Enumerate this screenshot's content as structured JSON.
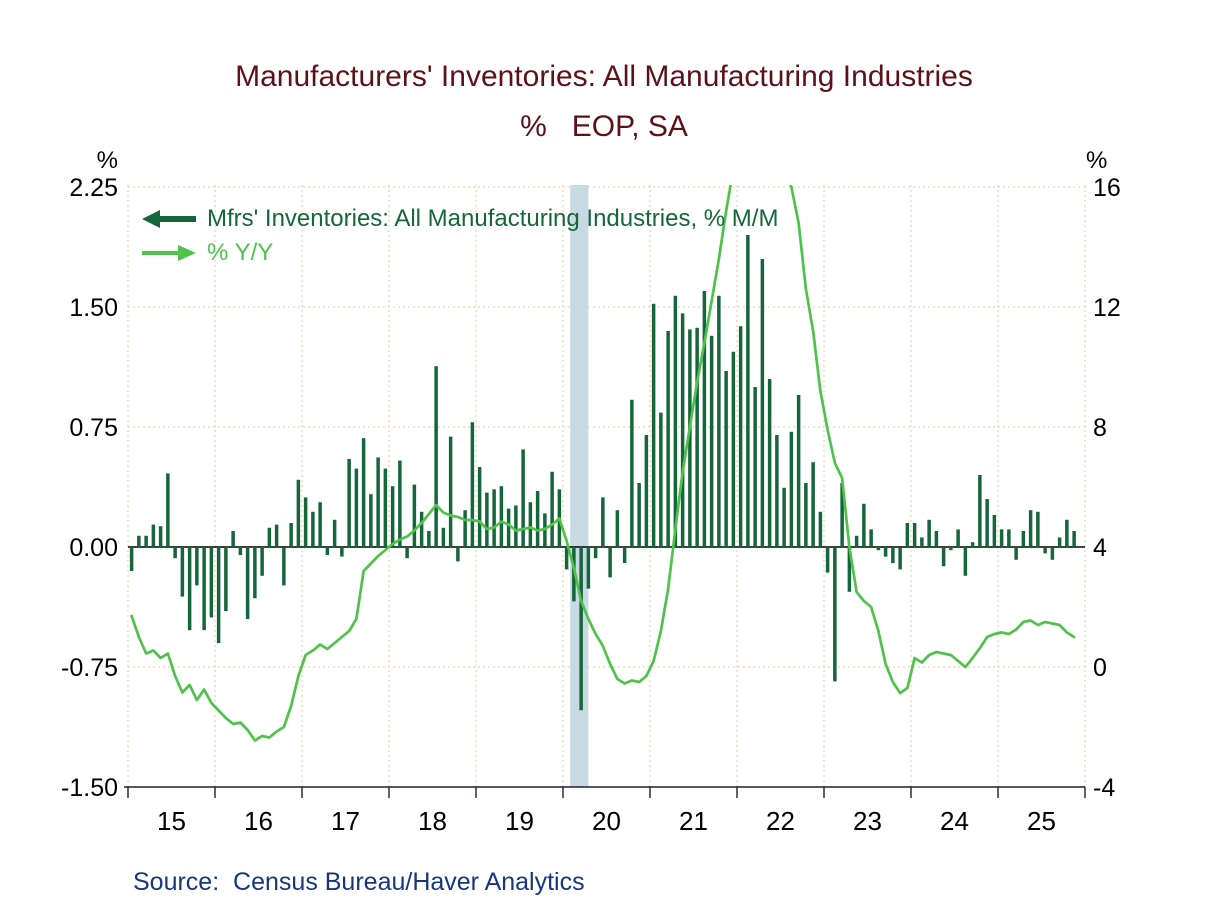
{
  "title": {
    "line1": "Manufacturers' Inventories: All Manufacturing Industries",
    "line2": "%   EOP, SA"
  },
  "source_label": "Source:  Census Bureau/Haver Analytics",
  "axes": {
    "left": {
      "unit": "%",
      "ticks": [
        "2.25",
        "1.50",
        "0.75",
        "0.00",
        "-0.75",
        "-1.50"
      ]
    },
    "right": {
      "unit": "%",
      "ticks": [
        "16",
        "12",
        "8",
        "4",
        "0",
        "-4"
      ]
    },
    "x": {
      "labels": [
        "15",
        "16",
        "17",
        "18",
        "19",
        "20",
        "21",
        "22",
        "23",
        "24",
        "25"
      ]
    }
  },
  "legend": [
    {
      "label": "Mfrs' Inventories: All Manufacturing Industries, % M/M",
      "arrow": "left"
    },
    {
      "label": "% Y/Y",
      "arrow": "right"
    }
  ],
  "colors": {
    "title": "#5D1118",
    "bars": "#15663A",
    "line": "#4EC24A",
    "source": "#16367F",
    "grid": "#F5C49E",
    "recession_band": "#C7D9E3",
    "axis": "#1C2030",
    "zero_line": "#000000",
    "tick_text": "#000000"
  },
  "chart_data": {
    "type": "bar",
    "title": "Manufacturers' Inventories: All Manufacturing Industries, % EOP, SA",
    "x_start": "2015-01",
    "x_end": "2025-11",
    "frequency": "monthly",
    "left_ylabel": "%",
    "right_ylabel": "%",
    "left_ylim": [
      -1.5,
      2.25
    ],
    "right_ylim": [
      -4,
      16
    ],
    "grid": "dotted, horizontal at left ticks and vertical at each January",
    "legend_position": "top-left inside plot",
    "recession_band": [
      "2020-02",
      "2020-04"
    ],
    "x_tick_years": [
      2015,
      2016,
      2017,
      2018,
      2019,
      2020,
      2021,
      2022,
      2023,
      2024,
      2025
    ],
    "series": [
      {
        "name": "Mfrs' Inventories: All Manufacturing Industries, % M/M",
        "type": "bar",
        "axis": "left",
        "values": [
          -0.15,
          0.07,
          0.07,
          0.14,
          0.13,
          0.46,
          -0.07,
          -0.31,
          -0.52,
          -0.24,
          -0.52,
          -0.44,
          -0.6,
          -0.4,
          0.1,
          -0.05,
          -0.45,
          -0.32,
          -0.18,
          0.12,
          0.14,
          -0.24,
          0.15,
          0.42,
          0.31,
          0.22,
          0.28,
          -0.05,
          0.17,
          -0.06,
          0.55,
          0.49,
          0.68,
          0.33,
          0.56,
          0.49,
          0.38,
          0.54,
          -0.07,
          0.39,
          0.22,
          0.1,
          1.13,
          0.12,
          0.69,
          -0.09,
          0.23,
          0.78,
          0.5,
          0.34,
          0.36,
          0.38,
          0.24,
          0.26,
          0.61,
          0.28,
          0.35,
          0.21,
          0.47,
          0.36,
          -0.14,
          -0.34,
          -1.02,
          -0.26,
          -0.07,
          0.31,
          -0.19,
          0.23,
          -0.1,
          0.92,
          0.4,
          0.7,
          1.52,
          0.84,
          1.35,
          1.57,
          1.46,
          1.36,
          1.37,
          1.6,
          1.32,
          1.57,
          1.1,
          1.22,
          1.38,
          1.95,
          1.0,
          1.8,
          1.05,
          0.7,
          0.37,
          0.72,
          0.95,
          0.4,
          0.53,
          0.22,
          -0.16,
          -0.84,
          0.4,
          -0.28,
          0.07,
          0.27,
          0.11,
          -0.02,
          -0.06,
          -0.1,
          -0.14,
          0.15,
          0.15,
          0.06,
          0.17,
          0.1,
          -0.12,
          -0.02,
          0.11,
          -0.18,
          0.03,
          0.45,
          0.3,
          0.2,
          0.11,
          0.11,
          -0.08,
          0.1,
          0.23,
          0.22,
          -0.04,
          -0.08,
          0.06,
          0.17,
          0.1
        ]
      },
      {
        "name": "% Y/Y",
        "type": "line",
        "axis": "right",
        "note_offscale": "values above 16 are clipped at plot top (Dec 2021 - Jul 2022)",
        "values": [
          1.7,
          1.0,
          0.45,
          0.55,
          0.3,
          0.45,
          -0.3,
          -0.85,
          -0.6,
          -1.1,
          -0.75,
          -1.2,
          -1.45,
          -1.7,
          -1.9,
          -1.85,
          -2.1,
          -2.45,
          -2.3,
          -2.35,
          -2.15,
          -2.0,
          -1.3,
          -0.3,
          0.4,
          0.55,
          0.75,
          0.6,
          0.8,
          1.0,
          1.2,
          1.6,
          3.2,
          3.45,
          3.7,
          3.9,
          4.1,
          4.25,
          4.35,
          4.55,
          4.8,
          5.1,
          5.4,
          5.15,
          5.05,
          5.0,
          4.9,
          4.9,
          4.85,
          4.6,
          4.65,
          4.85,
          4.75,
          4.55,
          4.6,
          4.65,
          4.55,
          4.6,
          4.75,
          4.95,
          4.2,
          3.3,
          2.2,
          1.6,
          1.1,
          0.7,
          0.1,
          -0.4,
          -0.55,
          -0.45,
          -0.5,
          -0.3,
          0.2,
          1.2,
          2.6,
          4.6,
          6.5,
          8.0,
          9.5,
          10.8,
          12.2,
          13.6,
          15.2,
          16.6,
          17.6,
          18.3,
          18.6,
          18.4,
          18.0,
          17.4,
          16.6,
          16.0,
          14.8,
          12.6,
          11.2,
          9.2,
          7.9,
          6.8,
          6.3,
          4.0,
          2.5,
          2.2,
          2.0,
          1.2,
          0.1,
          -0.5,
          -0.87,
          -0.7,
          0.3,
          0.15,
          0.4,
          0.5,
          0.45,
          0.4,
          0.2,
          0.0,
          0.3,
          0.63,
          1.0,
          1.1,
          1.15,
          1.1,
          1.25,
          1.5,
          1.55,
          1.4,
          1.5,
          1.45,
          1.4,
          1.15,
          1.0
        ]
      }
    ]
  }
}
